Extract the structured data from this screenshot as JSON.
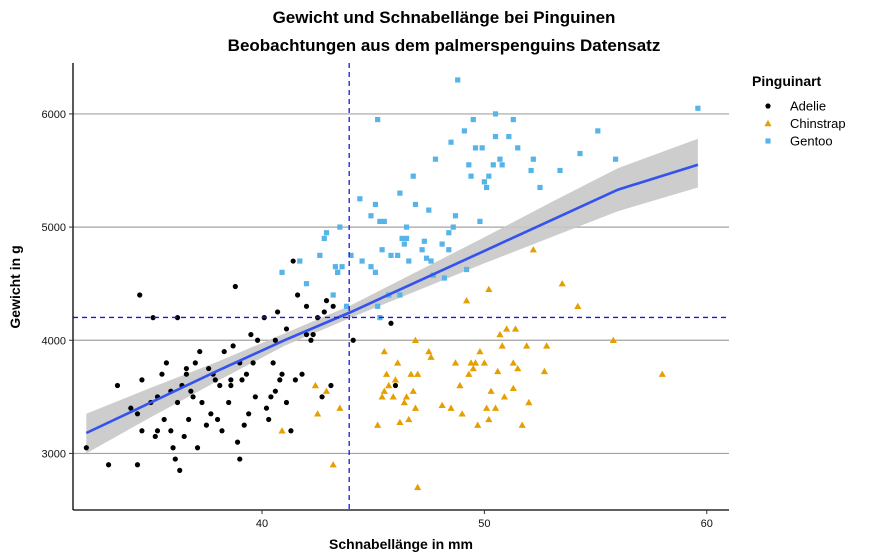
{
  "chart_data": {
    "type": "scatter",
    "title": "Gewicht und Schnabellänge bei Pinguinen",
    "subtitle": "Beobachtungen aus dem palmerspenguins Datensatz",
    "xlabel": "Schnabellänge in mm",
    "ylabel": "Gewicht in g",
    "xlim": [
      31.5,
      61
    ],
    "ylim": [
      2500,
      6450
    ],
    "x_ticks": [
      40,
      50,
      60
    ],
    "y_ticks": [
      3000,
      4000,
      5000,
      6000
    ],
    "grid": "horizontal major",
    "legend": {
      "title": "Pinguinart",
      "position": "right"
    },
    "reference_lines": {
      "x_mean": 43.92,
      "y_mean": 4201.75,
      "color": "#1a1adb"
    },
    "fit": {
      "method": "lm",
      "color": "#3352ee",
      "ci_color": "#c8c8c8",
      "x": [
        32.1,
        35,
        38,
        41,
        44,
        47,
        50,
        53,
        56,
        59.6
      ],
      "y": [
        3180,
        3450,
        3730,
        4000,
        4250,
        4520,
        4790,
        5060,
        5330,
        5550
      ],
      "ci_lower": [
        3000,
        3320,
        3640,
        3950,
        4200,
        4440,
        4680,
        4910,
        5140,
        5350
      ],
      "ci_upper": [
        3350,
        3580,
        3810,
        4060,
        4310,
        4610,
        4910,
        5220,
        5520,
        5780
      ]
    },
    "series": [
      {
        "name": "Adelie",
        "color": "#000000",
        "shape": "circle",
        "x": [
          32.1,
          33.1,
          33.5,
          34.1,
          34.4,
          34.5,
          34.6,
          34.6,
          35,
          35.1,
          35.3,
          35.5,
          35.6,
          35.7,
          35.9,
          36,
          36.2,
          36.3,
          36.4,
          36.5,
          36.6,
          36.7,
          36.8,
          36.9,
          37,
          37.2,
          37.3,
          37.5,
          37.6,
          37.7,
          37.8,
          38,
          38.1,
          38.2,
          38.3,
          38.5,
          38.6,
          38.7,
          38.8,
          38.9,
          39,
          39.1,
          39.2,
          39.3,
          39.5,
          39.6,
          39.7,
          39.8,
          40.1,
          40.2,
          40.3,
          40.5,
          40.6,
          40.7,
          40.8,
          40.9,
          41.1,
          41.3,
          41.4,
          41.5,
          41.6,
          41.8,
          42,
          42.2,
          42.3,
          42.5,
          42.7,
          42.8,
          42.9,
          43.1,
          43.2,
          44.1,
          45.8,
          46,
          35.2,
          36.1,
          37.9,
          39.4,
          40.6,
          41.1,
          39,
          38.6,
          36.6,
          34.4,
          35.3,
          36.2,
          40.4,
          37.1,
          42,
          35.9
        ],
        "y": [
          3050,
          2900,
          3600,
          3400,
          2900,
          4400,
          3650,
          3200,
          3450,
          4200,
          3500,
          3700,
          3300,
          3800,
          3200,
          3050,
          3450,
          2850,
          3600,
          3150,
          3700,
          3300,
          3550,
          3500,
          3800,
          3900,
          3450,
          3250,
          3750,
          3350,
          3700,
          3300,
          3600,
          3200,
          3900,
          3450,
          3600,
          3950,
          4475,
          3100,
          3800,
          3650,
          3250,
          3700,
          4050,
          3800,
          3500,
          4000,
          4200,
          3400,
          3300,
          3800,
          3550,
          4250,
          3650,
          3700,
          4100,
          3200,
          4700,
          3650,
          4400,
          3700,
          4050,
          4000,
          4050,
          4200,
          3500,
          4250,
          4350,
          3600,
          4300,
          4000,
          4150,
          3600,
          3150,
          2950,
          3650,
          3350,
          4000,
          3450,
          2950,
          3650,
          3750,
          3350,
          3200,
          4200,
          3500,
          3050,
          4300,
          3550
        ]
      },
      {
        "name": "Chinstrap",
        "color": "#e69f00",
        "shape": "triangle",
        "x": [
          40.9,
          42.4,
          42.5,
          43.2,
          43.5,
          45.2,
          45.4,
          45.5,
          45.6,
          45.7,
          45.9,
          46,
          46.1,
          46.2,
          46.4,
          46.5,
          46.6,
          46.7,
          46.8,
          46.9,
          47,
          47.5,
          47.6,
          48.1,
          48.5,
          48.7,
          49,
          49.2,
          49.3,
          49.5,
          49.6,
          49.7,
          49.8,
          50,
          50.1,
          50.2,
          50.3,
          50.5,
          50.6,
          50.7,
          50.8,
          50.9,
          51,
          51.3,
          51.4,
          51.5,
          51.7,
          51.9,
          52,
          52.2,
          52.7,
          52.8,
          53.5,
          54.2,
          55.8,
          58,
          47,
          45.5,
          49.4,
          50.2,
          51.3,
          46.9,
          42.9,
          48.9
        ],
        "y": [
          3200,
          3600,
          3350,
          2900,
          3400,
          3250,
          3500,
          3550,
          3700,
          3600,
          3500,
          3650,
          3800,
          3275,
          3450,
          3500,
          3300,
          3700,
          3550,
          3400,
          2700,
          3900,
          3850,
          3425,
          3400,
          3800,
          3350,
          4350,
          3700,
          3750,
          3800,
          3250,
          3900,
          3800,
          3400,
          3300,
          3550,
          3400,
          3725,
          4050,
          3950,
          3500,
          4100,
          3800,
          4100,
          3750,
          3250,
          3950,
          3450,
          4800,
          3725,
          3950,
          4500,
          4300,
          4000,
          3700,
          3700,
          3900,
          3800,
          4450,
          3575,
          4000,
          3550,
          3600
        ]
      },
      {
        "name": "Gentoo",
        "color": "#56b4e9",
        "shape": "square",
        "x": [
          40.9,
          41.7,
          42,
          42.6,
          42.8,
          42.9,
          43.2,
          43.3,
          43.4,
          43.5,
          43.6,
          43.8,
          44,
          44.4,
          44.5,
          44.9,
          45.1,
          45.2,
          45.3,
          45.4,
          45.5,
          45.7,
          45.8,
          46.1,
          46.2,
          46.3,
          46.4,
          46.5,
          46.6,
          46.8,
          46.9,
          47.2,
          47.3,
          47.4,
          47.5,
          47.7,
          47.8,
          48.1,
          48.2,
          48.4,
          48.5,
          48.6,
          48.7,
          49.1,
          49.2,
          49.4,
          49.5,
          49.6,
          49.8,
          49.9,
          50,
          50.1,
          50.2,
          50.4,
          50.5,
          50.7,
          50.8,
          51.1,
          51.3,
          51.5,
          52.1,
          52.2,
          52.5,
          53.4,
          54.3,
          55.1,
          55.9,
          59.6,
          48.8,
          46.2,
          45.1,
          47.6,
          44.9,
          43.4,
          50.5,
          45.3,
          46.5,
          48.4,
          49.3,
          45.2
        ],
        "y": [
          4600,
          4700,
          4500,
          4750,
          4900,
          4950,
          4400,
          4650,
          4600,
          5000,
          4650,
          4300,
          4750,
          5250,
          4700,
          5100,
          4600,
          4300,
          4200,
          4800,
          5050,
          4400,
          4750,
          4750,
          5300,
          4900,
          4850,
          5000,
          4700,
          5450,
          5200,
          4800,
          4875,
          4725,
          5150,
          4575,
          5600,
          4850,
          4550,
          4800,
          5750,
          5000,
          5100,
          5850,
          4625,
          5450,
          5950,
          5700,
          5050,
          5700,
          5400,
          5350,
          5450,
          5550,
          5800,
          5600,
          5550,
          5800,
          5950,
          5700,
          5500,
          5600,
          5350,
          5500,
          5650,
          5850,
          5600,
          6050,
          6300,
          4400,
          5200,
          4700,
          4650,
          4600,
          6000,
          5050,
          4900,
          4950,
          5550,
          5950
        ]
      }
    ]
  }
}
